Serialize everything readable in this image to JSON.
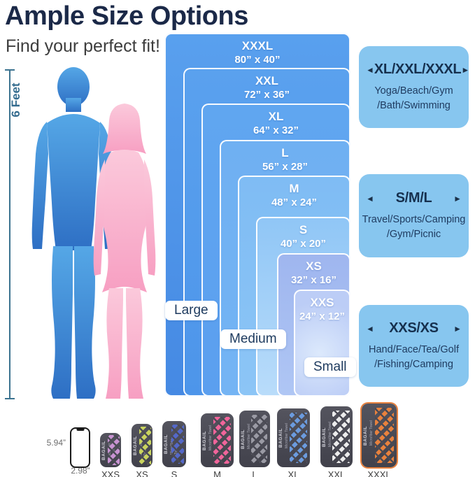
{
  "header": {
    "title": "Ample Size Options",
    "subtitle": "Find your perfect fit!"
  },
  "figure": {
    "height_label": "6 Feet"
  },
  "icons": {
    "left_arrow": "◄",
    "right_arrow": "►"
  },
  "size_chart": {
    "sizes": [
      {
        "name": "XXXL",
        "dims": "80”  x 40”",
        "fill_top": "#59A0EE",
        "fill_bottom": "#4589E3"
      },
      {
        "name": "XXL",
        "dims": "72”  x 36”",
        "fill_top": "#5AA1EE",
        "fill_bottom": "#4D95EA"
      },
      {
        "name": "XL",
        "dims": "64”  x 32”",
        "fill_top": "#60A6F0",
        "fill_bottom": "#5B9FEF"
      },
      {
        "name": "L",
        "dims": "56”  x 28”",
        "fill_top": "#6FB0F2",
        "fill_bottom": "#74B4F4"
      },
      {
        "name": "M",
        "dims": "48”  x 24”",
        "fill_top": "#7FBCF4",
        "fill_bottom": "#8CC5F6"
      },
      {
        "name": "S",
        "dims": "40”  x 20”",
        "fill_top": "#90C6F6",
        "fill_bottom": "#B9DCFA"
      },
      {
        "name": "XS",
        "dims": "32”  x 16”",
        "fill_top": "#9FB6EF",
        "fill_bottom": "#AFC6F4"
      },
      {
        "name": "XXS",
        "dims": "24”  x 12”",
        "fill_top": "#DCE9FC",
        "fill_bottom": "#BCCDF6"
      }
    ],
    "group_labels": [
      "Large",
      "Medium",
      "Small"
    ]
  },
  "use_cases": [
    {
      "title": "XL/XXL/XXXL",
      "lines": [
        "Yoga/Beach/Gym",
        "/Bath/Swimming"
      ]
    },
    {
      "title": "S/M/L",
      "lines": [
        "Travel/Sports/Camping",
        "/Gym/Picnic"
      ]
    },
    {
      "title": "XXS/XS",
      "lines": [
        "Hand/Face/Tea/Golf",
        "/Fishing/Camping"
      ]
    }
  ],
  "phone": {
    "height_label": "5.94”",
    "width_label": "2.98”"
  },
  "towels": {
    "brand": "BAGAIL",
    "brand_sub": "Microfiber Towel",
    "body_color": "#4a4a54",
    "items": [
      {
        "label": "XXS",
        "stripe_color": "#c893d2"
      },
      {
        "label": "XS",
        "stripe_color": "#c9d45e"
      },
      {
        "label": "S",
        "stripe_color": "#5468c8"
      },
      {
        "label": "M",
        "stripe_color": "#f0649a"
      },
      {
        "label": "L",
        "stripe_color": "#9a9aa4"
      },
      {
        "label": "XL",
        "stripe_color": "#6b9bde"
      },
      {
        "label": "XXL",
        "stripe_color": "#ececec"
      },
      {
        "label": "XXXL",
        "stripe_color": "#e8813d",
        "edge_color": "#e8813d"
      }
    ]
  },
  "colors": {
    "title_text": "#1b2948",
    "use_case_box_bg": "#87c6ef",
    "use_case_text": "#16304e",
    "male_silhouette_top": "#55A7E6",
    "male_silhouette_bottom": "#2E6FC4",
    "female_silhouette_top": "#FBC9DB",
    "female_silhouette_bottom": "#F79FC2",
    "ruler": "#3c7390"
  }
}
